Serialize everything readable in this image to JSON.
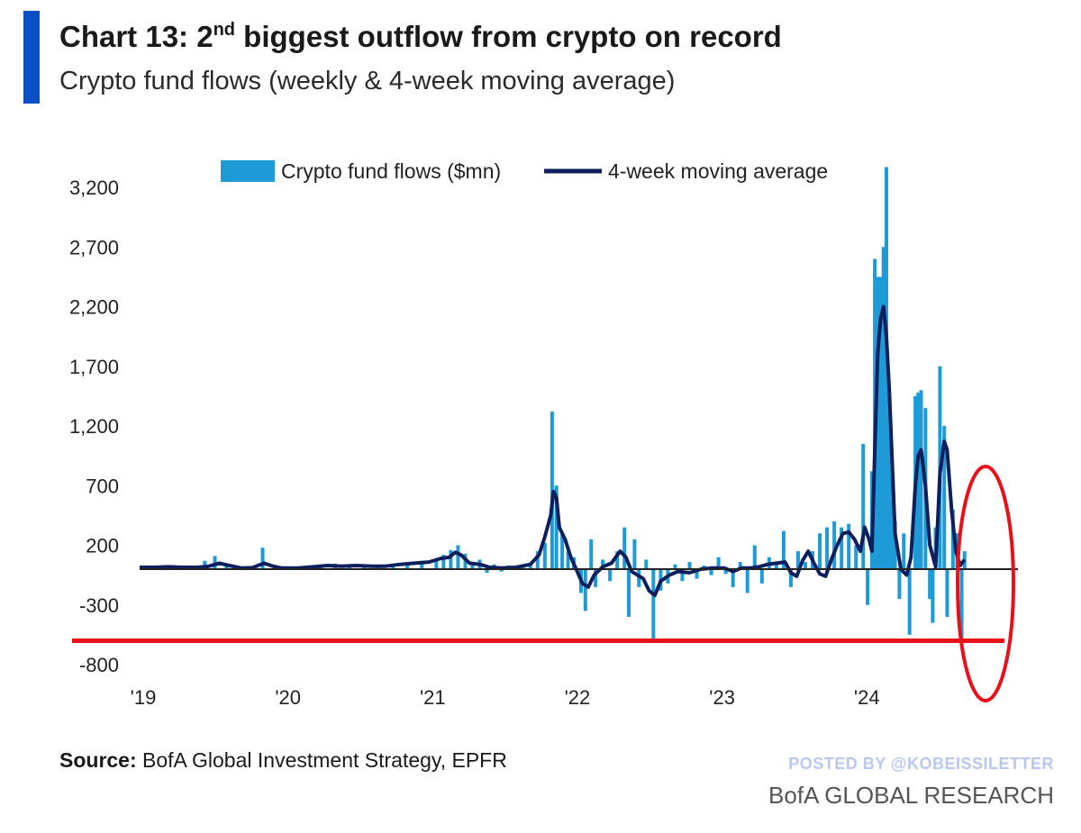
{
  "header": {
    "title_prefix": "Chart 13: 2",
    "title_sup": "nd",
    "title_rest": " biggest outflow from crypto on record",
    "subtitle": "Crypto fund flows (weekly & 4-week moving average)"
  },
  "footer": {
    "source_label": "Source:",
    "source_text": " BofA Global Investment Strategy, EPFR",
    "posted_by": "POSTED BY @KOBEISSILETTER",
    "brand": "BofA GLOBAL RESEARCH"
  },
  "colors": {
    "bars": "#1e9ad6",
    "moving_average": "#0d1f5c",
    "accent": "#0b4fc4",
    "annotation": "#e8111b"
  },
  "chart_data": {
    "type": "bar",
    "ylim": [
      -800,
      3400
    ],
    "yticks": [
      -800,
      -300,
      200,
      700,
      1200,
      1700,
      2200,
      2700,
      3200
    ],
    "ytick_labels": [
      "-800",
      "-300",
      "200",
      "700",
      "1,200",
      "1,700",
      "2,200",
      "2,700",
      "3,200"
    ],
    "x_range": [
      2019.0,
      2024.85
    ],
    "xticks": [
      2019,
      2020,
      2021,
      2022,
      2023,
      2024
    ],
    "xtick_labels": [
      "'19",
      "'20",
      "'21",
      "'22",
      "'23",
      "'24"
    ],
    "legend_position": "top",
    "series": [
      {
        "name": "Crypto fund flows ($mn)",
        "kind": "bar",
        "points": [
          [
            2019.05,
            15
          ],
          [
            2019.15,
            20
          ],
          [
            2019.25,
            10
          ],
          [
            2019.35,
            25
          ],
          [
            2019.45,
            70
          ],
          [
            2019.52,
            110
          ],
          [
            2019.6,
            30
          ],
          [
            2019.7,
            20
          ],
          [
            2019.78,
            25
          ],
          [
            2019.85,
            180
          ],
          [
            2019.95,
            20
          ],
          [
            2020.05,
            10
          ],
          [
            2020.15,
            15
          ],
          [
            2020.25,
            30
          ],
          [
            2020.35,
            45
          ],
          [
            2020.45,
            15
          ],
          [
            2020.55,
            40
          ],
          [
            2020.65,
            20
          ],
          [
            2020.75,
            30
          ],
          [
            2020.85,
            60
          ],
          [
            2020.95,
            70
          ],
          [
            2021.05,
            90
          ],
          [
            2021.1,
            120
          ],
          [
            2021.15,
            160
          ],
          [
            2021.2,
            200
          ],
          [
            2021.25,
            130
          ],
          [
            2021.3,
            60
          ],
          [
            2021.35,
            80
          ],
          [
            2021.4,
            -30
          ],
          [
            2021.45,
            40
          ],
          [
            2021.5,
            -20
          ],
          [
            2021.55,
            30
          ],
          [
            2021.6,
            10
          ],
          [
            2021.65,
            20
          ],
          [
            2021.7,
            50
          ],
          [
            2021.75,
            150
          ],
          [
            2021.8,
            220
          ],
          [
            2021.85,
            1320
          ],
          [
            2021.88,
            700
          ],
          [
            2021.92,
            300
          ],
          [
            2021.96,
            150
          ],
          [
            2022.0,
            100
          ],
          [
            2022.05,
            -200
          ],
          [
            2022.08,
            -350
          ],
          [
            2022.12,
            250
          ],
          [
            2022.15,
            -150
          ],
          [
            2022.2,
            80
          ],
          [
            2022.25,
            -100
          ],
          [
            2022.3,
            150
          ],
          [
            2022.35,
            350
          ],
          [
            2022.38,
            -400
          ],
          [
            2022.42,
            250
          ],
          [
            2022.45,
            -150
          ],
          [
            2022.5,
            80
          ],
          [
            2022.55,
            -600
          ],
          [
            2022.6,
            -180
          ],
          [
            2022.65,
            -120
          ],
          [
            2022.7,
            40
          ],
          [
            2022.75,
            -100
          ],
          [
            2022.8,
            60
          ],
          [
            2022.85,
            -80
          ],
          [
            2022.9,
            30
          ],
          [
            2022.95,
            -50
          ],
          [
            2023.0,
            100
          ],
          [
            2023.05,
            -40
          ],
          [
            2023.1,
            -150
          ],
          [
            2023.15,
            60
          ],
          [
            2023.2,
            -200
          ],
          [
            2023.25,
            200
          ],
          [
            2023.3,
            -120
          ],
          [
            2023.35,
            100
          ],
          [
            2023.4,
            50
          ],
          [
            2023.45,
            320
          ],
          [
            2023.5,
            -150
          ],
          [
            2023.55,
            150
          ],
          [
            2023.6,
            60
          ],
          [
            2023.65,
            150
          ],
          [
            2023.7,
            300
          ],
          [
            2023.75,
            350
          ],
          [
            2023.8,
            400
          ],
          [
            2023.85,
            350
          ],
          [
            2023.9,
            380
          ],
          [
            2023.95,
            200
          ],
          [
            2024.0,
            1050
          ],
          [
            2024.03,
            -300
          ],
          [
            2024.06,
            820
          ],
          [
            2024.08,
            2600
          ],
          [
            2024.1,
            2450
          ],
          [
            2024.12,
            2450
          ],
          [
            2024.14,
            2700
          ],
          [
            2024.16,
            3370
          ],
          [
            2024.18,
            1350
          ],
          [
            2024.2,
            800
          ],
          [
            2024.22,
            400
          ],
          [
            2024.25,
            -250
          ],
          [
            2024.28,
            300
          ],
          [
            2024.32,
            -550
          ],
          [
            2024.36,
            1450
          ],
          [
            2024.38,
            1480
          ],
          [
            2024.4,
            1500
          ],
          [
            2024.43,
            1350
          ],
          [
            2024.46,
            -250
          ],
          [
            2024.48,
            -450
          ],
          [
            2024.5,
            350
          ],
          [
            2024.53,
            1700
          ],
          [
            2024.56,
            1200
          ],
          [
            2024.58,
            -400
          ],
          [
            2024.62,
            500
          ],
          [
            2024.65,
            300
          ],
          [
            2024.68,
            -580
          ],
          [
            2024.7,
            150
          ]
        ]
      },
      {
        "name": "4-week moving average",
        "kind": "line",
        "points": [
          [
            2019.0,
            15
          ],
          [
            2019.1,
            15
          ],
          [
            2019.2,
            20
          ],
          [
            2019.3,
            15
          ],
          [
            2019.4,
            15
          ],
          [
            2019.48,
            25
          ],
          [
            2019.55,
            50
          ],
          [
            2019.62,
            30
          ],
          [
            2019.7,
            10
          ],
          [
            2019.78,
            12
          ],
          [
            2019.86,
            50
          ],
          [
            2019.92,
            25
          ],
          [
            2019.98,
            10
          ],
          [
            2020.1,
            10
          ],
          [
            2020.2,
            20
          ],
          [
            2020.3,
            30
          ],
          [
            2020.4,
            25
          ],
          [
            2020.5,
            30
          ],
          [
            2020.6,
            25
          ],
          [
            2020.7,
            25
          ],
          [
            2020.8,
            40
          ],
          [
            2020.9,
            50
          ],
          [
            2021.0,
            60
          ],
          [
            2021.08,
            90
          ],
          [
            2021.14,
            100
          ],
          [
            2021.18,
            140
          ],
          [
            2021.22,
            120
          ],
          [
            2021.28,
            50
          ],
          [
            2021.35,
            40
          ],
          [
            2021.42,
            15
          ],
          [
            2021.5,
            10
          ],
          [
            2021.6,
            15
          ],
          [
            2021.7,
            40
          ],
          [
            2021.76,
            120
          ],
          [
            2021.8,
            270
          ],
          [
            2021.84,
            450
          ],
          [
            2021.86,
            650
          ],
          [
            2021.88,
            600
          ],
          [
            2021.9,
            350
          ],
          [
            2021.94,
            250
          ],
          [
            2021.98,
            100
          ],
          [
            2022.02,
            -10
          ],
          [
            2022.06,
            -120
          ],
          [
            2022.1,
            -150
          ],
          [
            2022.14,
            -50
          ],
          [
            2022.2,
            20
          ],
          [
            2022.26,
            50
          ],
          [
            2022.32,
            150
          ],
          [
            2022.36,
            100
          ],
          [
            2022.4,
            -20
          ],
          [
            2022.44,
            -50
          ],
          [
            2022.48,
            -80
          ],
          [
            2022.52,
            -180
          ],
          [
            2022.56,
            -220
          ],
          [
            2022.6,
            -100
          ],
          [
            2022.66,
            -50
          ],
          [
            2022.72,
            -20
          ],
          [
            2022.8,
            -30
          ],
          [
            2022.88,
            0
          ],
          [
            2022.96,
            10
          ],
          [
            2023.04,
            10
          ],
          [
            2023.1,
            -20
          ],
          [
            2023.16,
            10
          ],
          [
            2023.22,
            10
          ],
          [
            2023.28,
            20
          ],
          [
            2023.34,
            40
          ],
          [
            2023.4,
            50
          ],
          [
            2023.46,
            60
          ],
          [
            2023.5,
            -30
          ],
          [
            2023.54,
            -60
          ],
          [
            2023.58,
            70
          ],
          [
            2023.62,
            150
          ],
          [
            2023.66,
            50
          ],
          [
            2023.7,
            -40
          ],
          [
            2023.74,
            -60
          ],
          [
            2023.78,
            80
          ],
          [
            2023.82,
            200
          ],
          [
            2023.86,
            300
          ],
          [
            2023.9,
            310
          ],
          [
            2023.94,
            250
          ],
          [
            2023.98,
            150
          ],
          [
            2024.01,
            350
          ],
          [
            2024.04,
            250
          ],
          [
            2024.06,
            150
          ],
          [
            2024.08,
            1000
          ],
          [
            2024.1,
            1800
          ],
          [
            2024.12,
            2100
          ],
          [
            2024.14,
            2200
          ],
          [
            2024.16,
            1950
          ],
          [
            2024.18,
            1500
          ],
          [
            2024.2,
            900
          ],
          [
            2024.22,
            300
          ],
          [
            2024.26,
            0
          ],
          [
            2024.3,
            -50
          ],
          [
            2024.33,
            100
          ],
          [
            2024.36,
            700
          ],
          [
            2024.38,
            950
          ],
          [
            2024.4,
            1000
          ],
          [
            2024.43,
            700
          ],
          [
            2024.46,
            200
          ],
          [
            2024.5,
            20
          ],
          [
            2024.53,
            800
          ],
          [
            2024.56,
            1070
          ],
          [
            2024.58,
            1000
          ],
          [
            2024.61,
            500
          ],
          [
            2024.64,
            150
          ],
          [
            2024.67,
            30
          ],
          [
            2024.7,
            80
          ]
        ]
      }
    ],
    "annotations": {
      "red_horizontal_line_value": -600,
      "red_ellipse_x_center": 2024.72
    }
  }
}
